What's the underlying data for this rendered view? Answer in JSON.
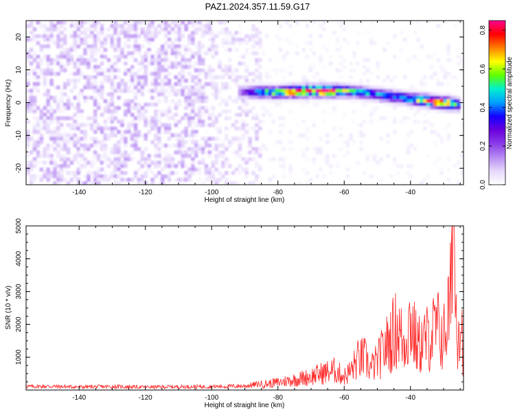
{
  "title": "PAZ1.2024.357.11.59.G17",
  "chart_data": [
    {
      "type": "heatmap",
      "xlabel": "Height of straight line (km)",
      "ylabel": "Frequency (Hz)",
      "colorbar_label": "Normalized spectral amplitude",
      "xlim": [
        -156,
        -24
      ],
      "ylim": [
        -25,
        25
      ],
      "xticks": [
        -140,
        -120,
        -100,
        -80,
        -60,
        -40
      ],
      "yticks": [
        -20,
        -10,
        0,
        10,
        20
      ],
      "ytick_labels": [
        "-20",
        "-10",
        "0",
        "10",
        "20"
      ],
      "colorbar_range": [
        0,
        0.85
      ],
      "colorbar_ticks": [
        0.0,
        0.2,
        0.4,
        0.6,
        0.8
      ],
      "colorbar_tick_labels": [
        "0.0",
        "0.2",
        "0.4",
        "0.6",
        "0.8"
      ],
      "colormap": [
        "#ffffff",
        "#e6d8fb",
        "#b88cf2",
        "#8a3ce8",
        "#6a00dd",
        "#1400ff",
        "#00a0ff",
        "#00f0d0",
        "#60ff00",
        "#ffff00",
        "#ff8000",
        "#ff0000",
        "#ff0090"
      ],
      "signal_ridge": {
        "x": [
          -92,
          -85,
          -80,
          -75,
          -70,
          -65,
          -60,
          -55,
          -50,
          -45,
          -40,
          -35,
          -30,
          -25
        ],
        "frequency": [
          3.3,
          3.2,
          3.1,
          3.4,
          3.6,
          3.5,
          3.6,
          3.1,
          2.5,
          1.8,
          1.2,
          0.6,
          -0.2,
          -0.6
        ],
        "amplitude": [
          0.15,
          0.5,
          0.55,
          0.78,
          0.7,
          0.82,
          0.55,
          0.45,
          0.4,
          0.42,
          0.48,
          0.7,
          0.8,
          0.5
        ]
      }
    },
    {
      "type": "line",
      "xlabel": "Height of straight line (km)",
      "ylabel": "SNR (10 * v/v)",
      "xlim": [
        -156,
        -24
      ],
      "ylim": [
        0,
        5000
      ],
      "xticks": [
        -140,
        -120,
        -100,
        -80,
        -60,
        -40
      ],
      "yticks": [
        1000,
        2000,
        3000,
        4000,
        5000
      ],
      "ytick_labels": [
        "1000",
        "2000",
        "3000",
        "4000",
        "5000"
      ],
      "color": "#ff3030",
      "series": [
        {
          "x": [
            -156,
            -150,
            -140,
            -130,
            -120,
            -110,
            -100,
            -90,
            -85,
            -80,
            -75,
            -70,
            -67,
            -63,
            -60,
            -58,
            -56,
            -54,
            -52,
            -50,
            -48,
            -46,
            -44,
            -42,
            -40,
            -38,
            -36,
            -34,
            -32,
            -30,
            -28,
            -27,
            -26,
            -25,
            -24
          ],
          "values": [
            110,
            120,
            100,
            110,
            95,
            105,
            110,
            130,
            200,
            280,
            380,
            500,
            610,
            720,
            500,
            700,
            1100,
            1200,
            800,
            1050,
            1500,
            1900,
            2300,
            1700,
            2600,
            1600,
            1800,
            2000,
            2300,
            1900,
            3200,
            5000,
            2300,
            3000,
            1400
          ]
        }
      ]
    }
  ]
}
